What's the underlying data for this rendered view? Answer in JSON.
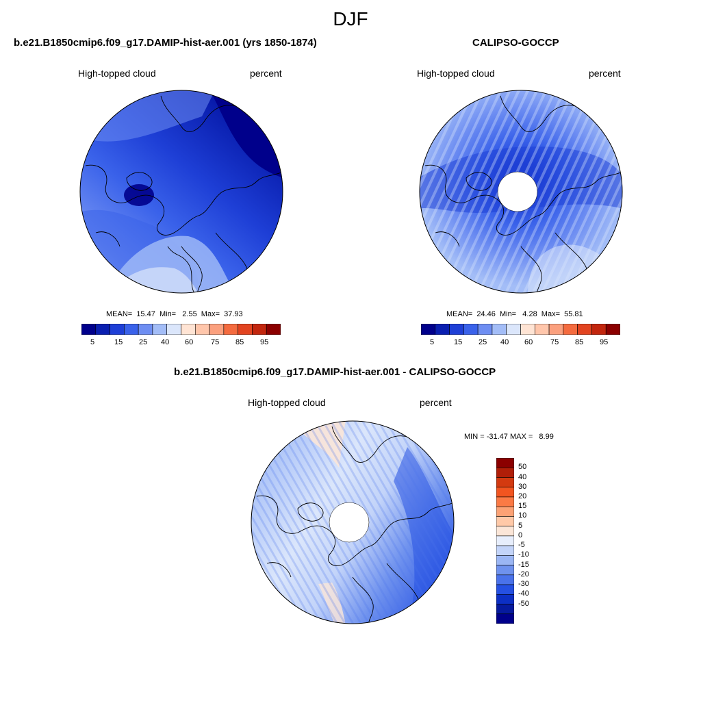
{
  "page": {
    "season": "DJF"
  },
  "panels": [
    {
      "title": "b.e21.B1850cmip6.f09_g17.DAMIP-hist-aer.001 (yrs 1850-1874)",
      "left_label": "High-topped cloud",
      "right_label": "percent",
      "stats": "MEAN=  15.47  Min=   2.55  Max=  37.93",
      "hole": false
    },
    {
      "title": "CALIPSO-GOCCP",
      "left_label": "High-topped cloud",
      "right_label": "percent",
      "stats": "MEAN=  24.46  Min=   4.28  Max=  55.81",
      "hole": true
    },
    {
      "title": "b.e21.B1850cmip6.f09_g17.DAMIP-hist-aer.001 - CALIPSO-GOCCP",
      "left_label": "High-topped cloud",
      "right_label": "percent",
      "stats": "MIN = -31.47 MAX =   8.99",
      "hole": true
    }
  ],
  "abs_colorbar": {
    "colors": [
      "#00008b",
      "#0a1fb0",
      "#1e3fd6",
      "#3a62ea",
      "#6e8ef2",
      "#a3bdf7",
      "#dbe6fb",
      "#ffe4d4",
      "#ffc6ab",
      "#fba07e",
      "#f46b3f",
      "#e24420",
      "#c2260e",
      "#8b0000"
    ],
    "ticks": [
      "5",
      "15",
      "25",
      "40",
      "60",
      "75",
      "85",
      "95"
    ]
  },
  "diff_colorbar": {
    "colors": [
      "#8b0000",
      "#b01e08",
      "#d33a10",
      "#f25520",
      "#fb7a45",
      "#fca275",
      "#ffc9a8",
      "#fbe6d8",
      "#e7eefc",
      "#c3d4f9",
      "#9bb6f4",
      "#6f92ee",
      "#4a72ea",
      "#2550e2",
      "#0c2fc4",
      "#061a9e",
      "#00008b"
    ],
    "ticks": [
      "50",
      "40",
      "30",
      "20",
      "15",
      "10",
      "5",
      "0",
      "-5",
      "-10",
      "-15",
      "-20",
      "-30",
      "-40",
      "-50"
    ]
  },
  "map_palette": {
    "deep": "#00008b",
    "dark": "#0a1fb0",
    "strong": "#1e3fd6",
    "mid": "#3a62ea",
    "light": "#6e8ef2",
    "pale": "#a3bdf7",
    "faint": "#dbe6fb",
    "warm": "#ffe4d4",
    "coast": "#000000"
  }
}
